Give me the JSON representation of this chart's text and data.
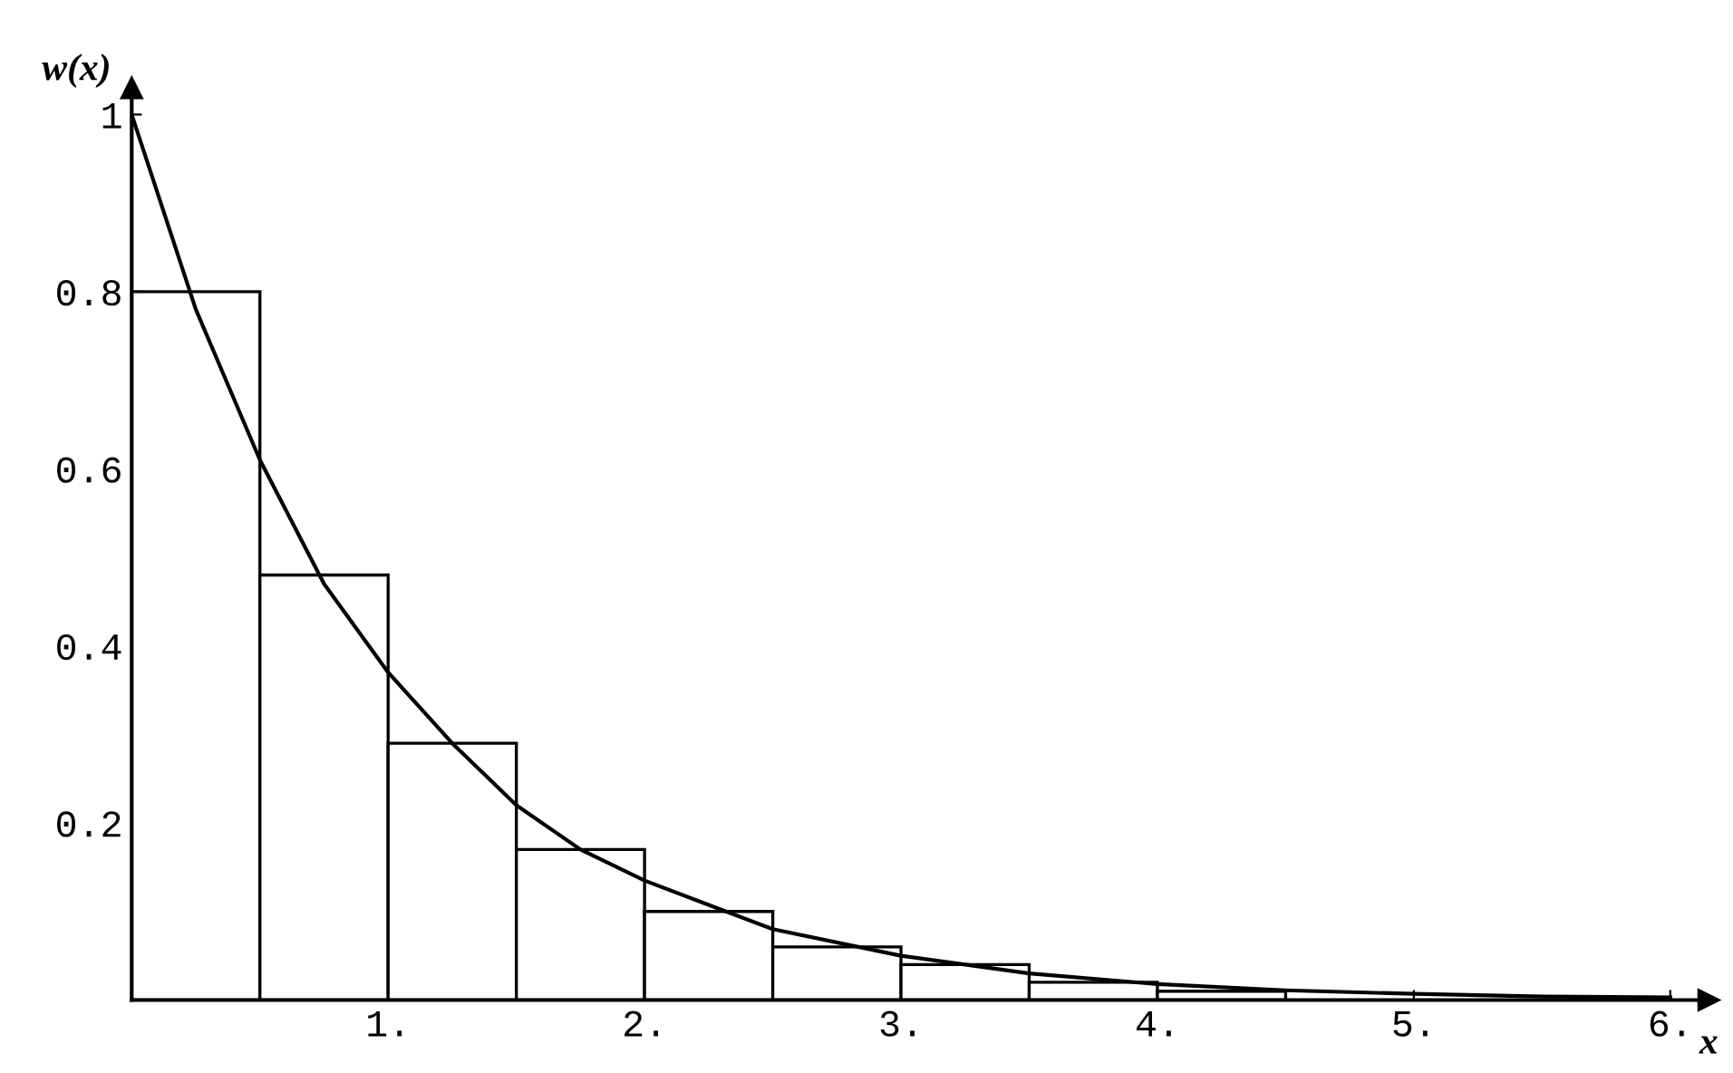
{
  "chart_data": {
    "type": "histogram",
    "xlabel": "x",
    "ylabel": "w(x)",
    "bins": [
      0,
      0.5,
      1,
      1.5,
      2,
      2.5,
      3,
      3.5,
      4,
      4.5,
      5,
      5.5,
      6
    ],
    "values": [
      0.8,
      0.48,
      0.29,
      0.17,
      0.1,
      0.06,
      0.04,
      0.02,
      0.01,
      null,
      null,
      null
    ],
    "color": "#ffffff",
    "series": [
      {
        "type": "line",
        "color": "#000000",
        "x": [
          0,
          0.25,
          0.5,
          0.75,
          1,
          1.25,
          1.5,
          1.75,
          2,
          2.5,
          3,
          3.5,
          4,
          4.5,
          5,
          5.5,
          6
        ],
        "values": [
          1,
          0.78,
          0.61,
          0.47,
          0.37,
          0.29,
          0.22,
          0.17,
          0.135,
          0.08,
          0.05,
          0.03,
          0.018,
          0.011,
          0.007,
          0.004,
          0.003
        ]
      }
    ],
    "xlim": [
      0,
      6.15
    ],
    "ylim": [
      0,
      1.03
    ],
    "xticks": [
      {
        "value": 1,
        "label": "1."
      },
      {
        "value": 2,
        "label": "2."
      },
      {
        "value": 3,
        "label": "3."
      },
      {
        "value": 4,
        "label": "4."
      },
      {
        "value": 5,
        "label": "5."
      },
      {
        "value": 6,
        "label": "6."
      }
    ],
    "yticks": [
      0.2,
      0.4,
      0.6,
      0.8,
      1
    ],
    "grid": false,
    "legend": false
  }
}
